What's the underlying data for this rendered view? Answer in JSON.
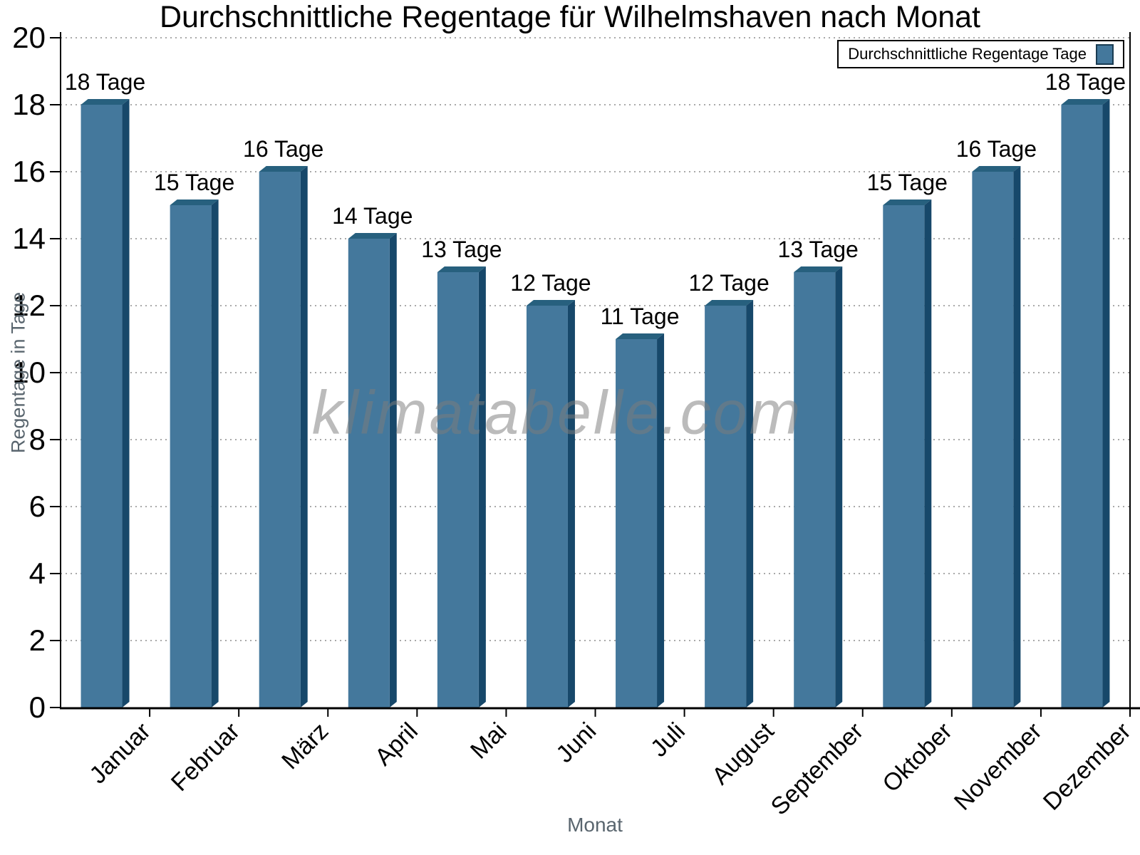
{
  "page": {
    "watermark": "klimatabelle.com"
  },
  "chart_data": {
    "type": "bar",
    "title": "Durchschnittliche Regentage für Wilhelmshaven nach Monat",
    "xlabel": "Monat",
    "ylabel": "Regentage in Tage",
    "categories": [
      "Januar",
      "Februar",
      "März",
      "April",
      "Mai",
      "Juni",
      "Juli",
      "August",
      "September",
      "Oktober",
      "November",
      "Dezember"
    ],
    "values": [
      18,
      15,
      16,
      14,
      13,
      12,
      11,
      12,
      13,
      15,
      16,
      18
    ],
    "value_label_suffix": "Tage",
    "ylim": [
      0,
      20
    ],
    "ytick_step": 2,
    "yticks": [
      0,
      2,
      4,
      6,
      8,
      10,
      12,
      14,
      16,
      18,
      20
    ],
    "grid": "horizontal-dotted",
    "bar_style": "3d-oblique",
    "legend": {
      "position": "top-right",
      "entries": [
        "Durchschnittliche Regentage Tage"
      ]
    },
    "colors": {
      "bar_face": "#44789C",
      "bar_side": "#17486A",
      "bar_top": "#27607E",
      "grid_line": "#a9a9a9",
      "axis": "#000000",
      "axis_title_text": "#59656e",
      "watermark_text": "rgba(125,125,125,0.52)"
    }
  }
}
